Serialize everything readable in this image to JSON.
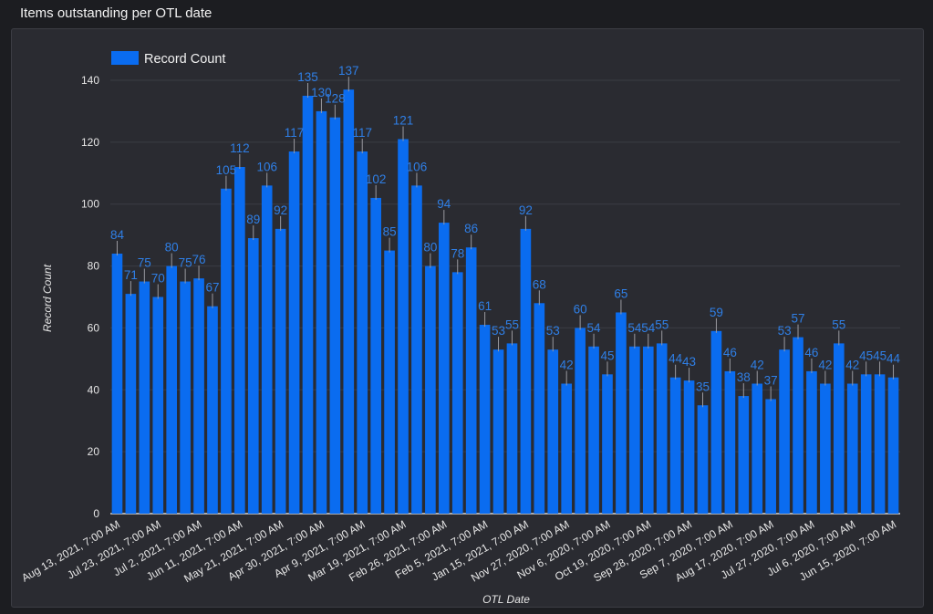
{
  "page": {
    "title": "Items outstanding per OTL date"
  },
  "chart_data": {
    "type": "bar",
    "legend": {
      "position": "top-left",
      "entries": [
        "Record Count"
      ]
    },
    "xlabel": "OTL Date",
    "ylabel": "Record Count",
    "ylim": [
      0,
      140
    ],
    "yticks": [
      0,
      20,
      40,
      60,
      80,
      100,
      120,
      140
    ],
    "grid": true,
    "bar_color": "#0a6cf0",
    "label_color": "#2f7fe6",
    "background": "#2a2b31",
    "tick_labels": [
      "Aug 13, 2021, 7:00 AM",
      "Jul 23, 2021, 7:00 AM",
      "Jul 2, 2021, 7:00 AM",
      "Jun 11, 2021, 7:00 AM",
      "May 21, 2021, 7:00 AM",
      "Apr 30, 2021, 7:00 AM",
      "Apr 9, 2021, 7:00 AM",
      "Mar 19, 2021, 7:00 AM",
      "Feb 26, 2021, 7:00 AM",
      "Feb 5, 2021, 7:00 AM",
      "Jan 15, 2021, 7:00 AM",
      "Nov 27, 2020, 7:00 AM",
      "Nov 6, 2020, 7:00 AM",
      "Oct 19, 2020, 7:00 AM",
      "Sep 28, 2020, 7:00 AM",
      "Sep 7, 2020, 7:00 AM",
      "Aug 17, 2020, 7:00 AM",
      "Jul 27, 2020, 7:00 AM",
      "Jul 6, 2020, 7:00 AM",
      "Jun 15, 2020, 7:00 AM"
    ],
    "series": [
      {
        "name": "Record Count",
        "values": [
          84,
          71,
          75,
          70,
          80,
          75,
          76,
          67,
          105,
          112,
          89,
          106,
          92,
          117,
          135,
          130,
          128,
          137,
          117,
          102,
          85,
          121,
          106,
          80,
          94,
          78,
          86,
          61,
          53,
          55,
          92,
          68,
          53,
          42,
          60,
          54,
          45,
          65,
          54,
          54,
          55,
          44,
          43,
          35,
          59,
          46,
          38,
          42,
          37,
          53,
          57,
          46,
          42,
          55,
          42,
          45,
          45,
          44
        ],
        "labels": [
          "84",
          "71",
          "75",
          "70",
          "80",
          "75",
          "76",
          "67",
          "105",
          "112",
          "89",
          "106",
          "92",
          "117",
          "135",
          "130",
          "128",
          "137",
          "117",
          "102",
          "85",
          "121",
          "106",
          "80",
          "94",
          "78",
          "86",
          "61",
          "53",
          "55",
          "92",
          "68",
          "53",
          "42",
          "60",
          "54",
          "45",
          "65",
          "54",
          "54",
          "55",
          "44",
          "43",
          "35",
          "59",
          "46",
          "38",
          "42",
          "37",
          "53",
          "57",
          "46",
          "42",
          "55",
          "42",
          "45",
          "45",
          "44"
        ]
      }
    ]
  }
}
